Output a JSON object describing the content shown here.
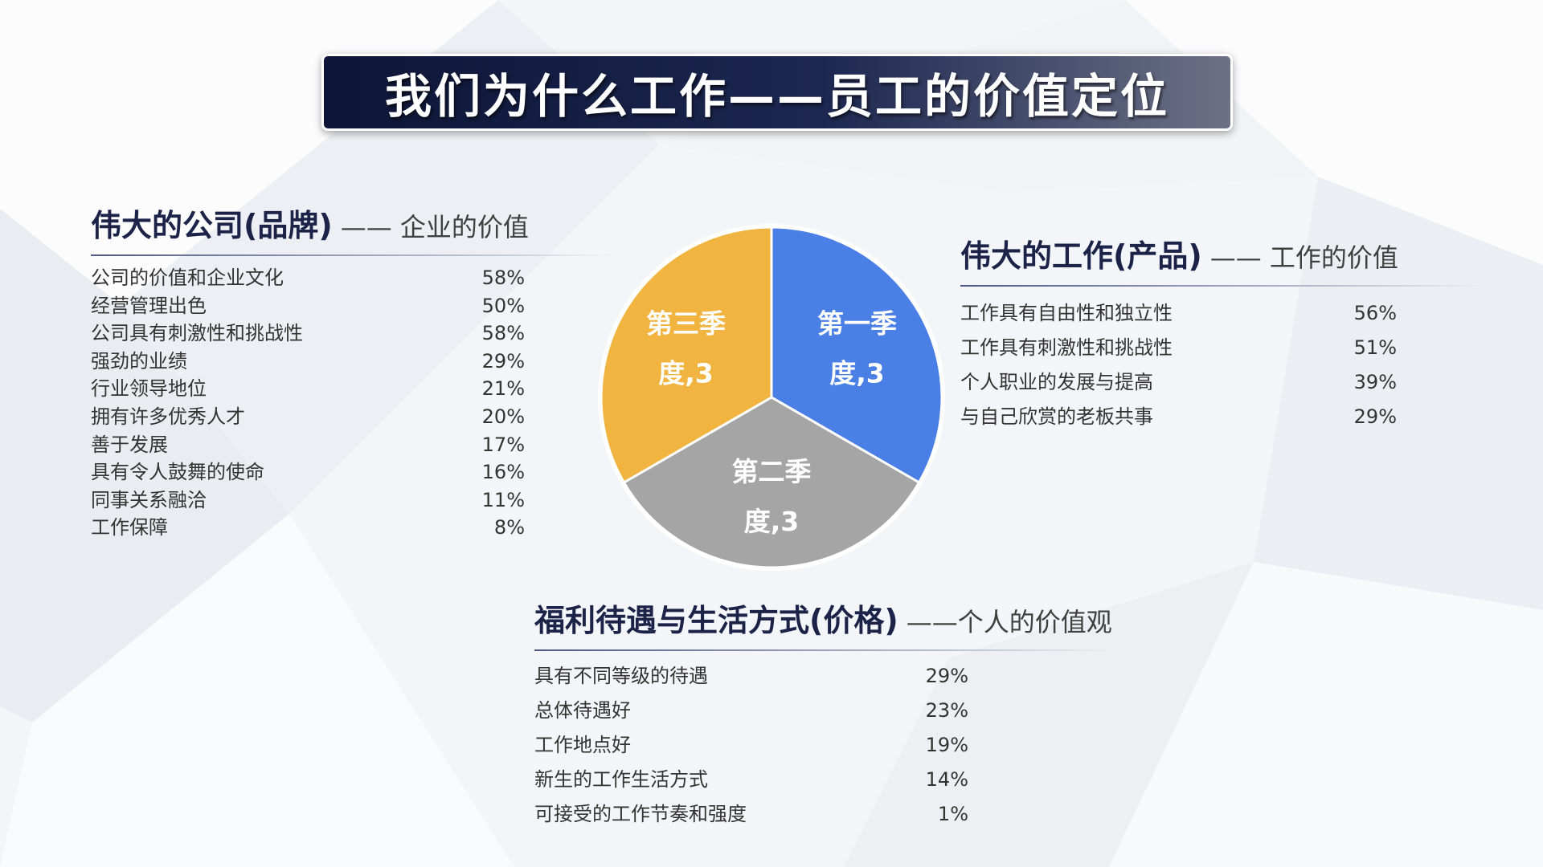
{
  "title": "我们为什么工作——员工的价值定位",
  "sections": {
    "left": {
      "title": "伟大的公司(品牌)",
      "subtitle": "—— 企业的价值",
      "items": [
        {
          "label": "公司的价值和企业文化",
          "value": "58%"
        },
        {
          "label": "经营管理出色",
          "value": "50%"
        },
        {
          "label": "公司具有刺激性和挑战性",
          "value": "58%"
        },
        {
          "label": "强劲的业绩",
          "value": "29%"
        },
        {
          "label": "行业领导地位",
          "value": "21%"
        },
        {
          "label": "拥有许多优秀人才",
          "value": "20%"
        },
        {
          "label": "善于发展",
          "value": "17%"
        },
        {
          "label": "具有令人鼓舞的使命",
          "value": "16%"
        },
        {
          "label": "同事关系融洽",
          "value": "11%"
        },
        {
          "label": "工作保障",
          "value": "8%"
        }
      ]
    },
    "right": {
      "title": "伟大的工作(产品)",
      "subtitle": "—— 工作的价值",
      "items": [
        {
          "label": "工作具有自由性和独立性",
          "value": "56%"
        },
        {
          "label": "工作具有刺激性和挑战性",
          "value": "51%"
        },
        {
          "label": "个人职业的发展与提高",
          "value": "39%"
        },
        {
          "label": "与自己欣赏的老板共事",
          "value": "29%"
        }
      ]
    },
    "bottom": {
      "title": "福利待遇与生活方式(价格)",
      "subtitle": "——个人的价值观",
      "items": [
        {
          "label": "具有不同等级的待遇",
          "value": "29%"
        },
        {
          "label": "总体待遇好",
          "value": "23%"
        },
        {
          "label": "工作地点好",
          "value": "19%"
        },
        {
          "label": "新生的工作生活方式",
          "value": "14%"
        },
        {
          "label": "可接受的工作节奏和强度",
          "value": "1%"
        }
      ]
    }
  },
  "chart_data": {
    "type": "pie",
    "categories": [
      "第一季度",
      "第二季度",
      "第三季度"
    ],
    "values": [
      3,
      3,
      3
    ],
    "data_labels": [
      [
        "第一季",
        "度,3"
      ],
      [
        "第二季",
        "度,3"
      ],
      [
        "第三季",
        "度,3"
      ]
    ],
    "colors": [
      "#4a7fe6",
      "#a5a5a5",
      "#f2b441"
    ],
    "start_angle_deg": 0,
    "direction": "clockwise",
    "legend": "none"
  }
}
